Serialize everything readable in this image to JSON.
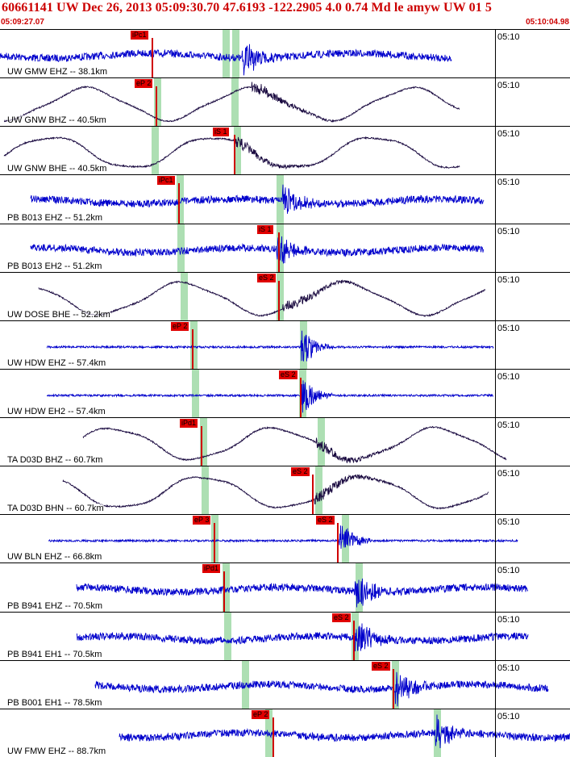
{
  "header": {
    "title": "60661141 UW Dec 26, 2013 05:09:30.70   47.6193 -122.2905  4.0 0.74 Md le amyw UW 01   5",
    "time_start": "05:09:27.07",
    "time_end": "05:10:04.98"
  },
  "tick_label": "05:10",
  "colors": {
    "blue": "#0000cc",
    "dark": "#1a0a40",
    "pick": "#e00000",
    "green": "#9fd9a6"
  },
  "traces": [
    {
      "label": "UW GMW EHZ -- 38.1km",
      "pick": "iPc1",
      "pick_type": "P",
      "color": "blue",
      "style": "noisy"
    },
    {
      "label": "UW GNW BHZ -- 40.5km",
      "pick": "eP 2",
      "pick_type": "P",
      "color": "dark",
      "style": "wave"
    },
    {
      "label": "UW GNW BHE -- 40.5km",
      "pick": "iS 1",
      "pick_type": "S",
      "color": "dark",
      "style": "wave"
    },
    {
      "label": "PB B013 EHZ -- 51.2km",
      "pick": "iPc1",
      "pick_type": "P",
      "color": "blue",
      "style": "noisy"
    },
    {
      "label": "PB B013 EH2 -- 51.2km",
      "pick": "iS 1",
      "pick_type": "S",
      "color": "blue",
      "style": "noisy"
    },
    {
      "label": "UW DOSE BHE -- 52.2km",
      "pick": "eS 2",
      "pick_type": "S",
      "color": "dark",
      "style": "wave"
    },
    {
      "label": "UW HDW EHZ -- 57.4km",
      "pick": "eP 2",
      "pick_type": "P",
      "color": "blue",
      "style": "flat"
    },
    {
      "label": "UW HDW EH2 -- 57.4km",
      "pick": "eS 2",
      "pick_type": "S",
      "color": "blue",
      "style": "flat"
    },
    {
      "label": "TA D03D BHZ -- 60.7km",
      "pick": "iPd1",
      "pick_type": "P",
      "color": "dark",
      "style": "wave"
    },
    {
      "label": "TA D03D BHN -- 60.7km",
      "pick": "eS 2",
      "pick_type": "S",
      "color": "dark",
      "style": "wave"
    },
    {
      "label": "UW BLN EHZ -- 66.8km",
      "pick": "eP 3",
      "pick_type": "P",
      "color": "blue",
      "style": "flat",
      "pick2": "eS 2"
    },
    {
      "label": "PB B941 EHZ -- 70.5km",
      "pick": "iPd1",
      "pick_type": "P",
      "color": "blue",
      "style": "noisy"
    },
    {
      "label": "PB B941 EH1 -- 70.5km",
      "pick": "eS 2",
      "pick_type": "S",
      "color": "blue",
      "style": "noisy"
    },
    {
      "label": "PB B001 EH1 -- 78.5km",
      "pick": "eS 2",
      "pick_type": "S",
      "color": "blue",
      "style": "noisy"
    },
    {
      "label": "UW FMW EHZ -- 88.7km",
      "pick": "eP 2",
      "pick_type": "P",
      "color": "blue",
      "style": "noisy"
    }
  ]
}
